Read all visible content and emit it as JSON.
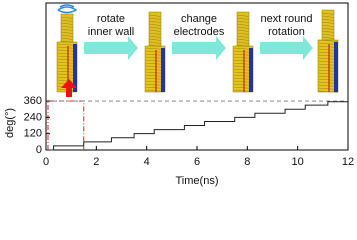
{
  "chart_data": {
    "type": "line",
    "xlabel": "Time(ns)",
    "ylabel": "deg(°)",
    "x": [
      0,
      0.3,
      0.3,
      1.5,
      1.5,
      2.6,
      2.6,
      3.5,
      3.5,
      4.3,
      4.3,
      5.5,
      5.5,
      6.3,
      6.3,
      7.5,
      7.5,
      8.3,
      8.3,
      9.5,
      9.5,
      10.3,
      10.3,
      11.2,
      11.2,
      12
    ],
    "series": [
      {
        "name": "rotation",
        "color": "#222222",
        "values": [
          0,
          0,
          30,
          30,
          60,
          60,
          90,
          90,
          120,
          120,
          150,
          150,
          180,
          180,
          210,
          210,
          240,
          240,
          270,
          270,
          300,
          300,
          330,
          330,
          355,
          355
        ]
      }
    ],
    "xlim": [
      0,
      12
    ],
    "xticks": [
      0,
      2,
      4,
      6,
      8,
      10,
      12
    ],
    "ylim": [
      0,
      400
    ],
    "yticks": [
      0,
      120,
      240,
      360
    ],
    "reference_line": 360,
    "annotations": [
      [
        "rotate",
        "inner wall"
      ],
      [
        "change",
        "electrodes"
      ],
      [
        "next round",
        "rotation"
      ]
    ]
  }
}
